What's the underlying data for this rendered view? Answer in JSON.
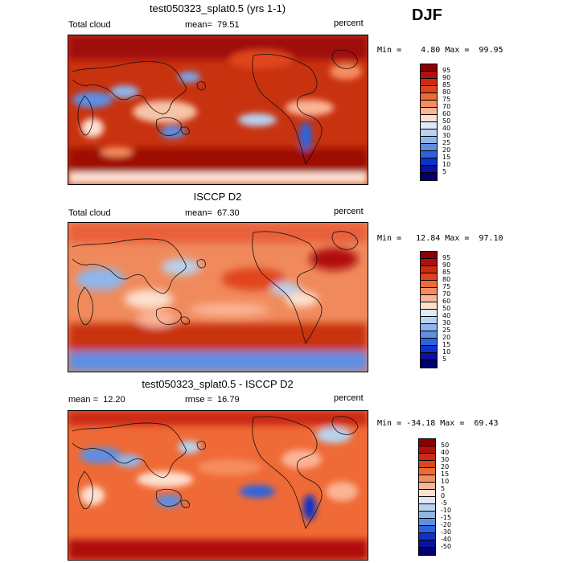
{
  "season": "DJF",
  "panels": [
    {
      "title": "test050323_splat0.5 (yrs 1-1)",
      "variable": "Total cloud",
      "stat": "mean=  79.51",
      "units": "percent",
      "minmax": "Min =    4.80 Max =  99.95",
      "colorbar": {
        "labels": [
          "95",
          "90",
          "85",
          "80",
          "75",
          "70",
          "60",
          "50",
          "40",
          "30",
          "25",
          "20",
          "15",
          "10",
          "5"
        ],
        "colors": [
          "#8b0000",
          "#b01010",
          "#cc2a12",
          "#e0441c",
          "#ef6a36",
          "#f68d5f",
          "#fbb496",
          "#fde0d0",
          "#dde9f6",
          "#b8d3f0",
          "#8fb6ea",
          "#5d8fe3",
          "#2f63dc",
          "#0f33c8",
          "#0a12a0",
          "#000070"
        ]
      }
    },
    {
      "title": "ISCCP D2",
      "variable": "Total cloud",
      "stat": "mean=  67.30",
      "units": "percent",
      "minmax": "Min =   12.84 Max =  97.10",
      "colorbar": {
        "labels": [
          "95",
          "90",
          "85",
          "80",
          "75",
          "70",
          "60",
          "50",
          "40",
          "30",
          "25",
          "20",
          "15",
          "10",
          "5"
        ],
        "colors": [
          "#8b0000",
          "#b01010",
          "#cc2a12",
          "#e0441c",
          "#ef6a36",
          "#f68d5f",
          "#fbb496",
          "#fde0d0",
          "#dde9f6",
          "#b8d3f0",
          "#8fb6ea",
          "#5d8fe3",
          "#2f63dc",
          "#0f33c8",
          "#0a12a0",
          "#000070"
        ]
      }
    },
    {
      "title": "test050323_splat0.5 - ISCCP D2",
      "variable": "mean =  12.20",
      "stat": "rmse =  16.79",
      "units": "percent",
      "minmax": "Min = -34.18 Max =  69.43",
      "colorbar": {
        "labels": [
          "50",
          "40",
          "30",
          "20",
          "15",
          "10",
          "5",
          "0",
          "-5",
          "-10",
          "-15",
          "-20",
          "-30",
          "-40",
          "-50"
        ],
        "colors": [
          "#8b0000",
          "#b01010",
          "#cc2a12",
          "#e0441c",
          "#ef6a36",
          "#f68d5f",
          "#fbb496",
          "#fde0d0",
          "#dde9f6",
          "#b8d3f0",
          "#8fb6ea",
          "#5d8fe3",
          "#2f63dc",
          "#0f33c8",
          "#0a12a0",
          "#000070"
        ]
      }
    }
  ]
}
